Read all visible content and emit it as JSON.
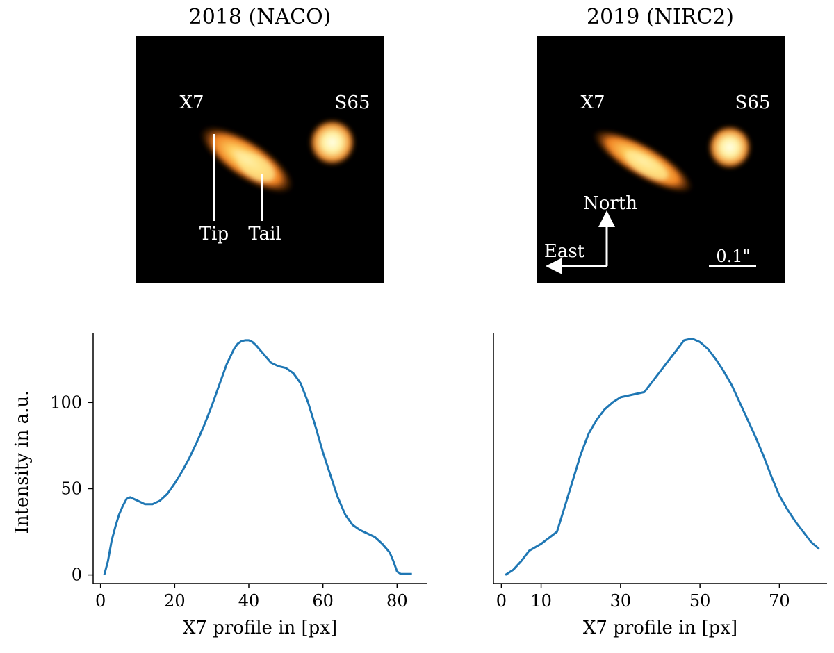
{
  "colors": {
    "line": "#1f77b4",
    "axis": "#000000",
    "image_bg": "#000000",
    "annotation": "#ffffff",
    "glow_hot": "#ffffe0",
    "glow_mid": "#ffb040",
    "glow_edge": "#e06010"
  },
  "panels": {
    "left": {
      "title": "2018 (NACO)",
      "labels": {
        "x7": "X7",
        "s65": "S65",
        "tip": "Tip",
        "tail": "Tail"
      }
    },
    "right": {
      "title": "2019 (NIRC2)",
      "labels": {
        "x7": "X7",
        "s65": "S65",
        "north": "North",
        "east": "East",
        "scale": "0.1\""
      }
    }
  },
  "chart_data": [
    {
      "type": "line",
      "title": "",
      "xlabel": "X7 profile in [px]",
      "ylabel": "Intensity in a.u.",
      "xlim": [
        -2,
        88
      ],
      "ylim": [
        -5,
        140
      ],
      "xticks": [
        0,
        20,
        40,
        60,
        80
      ],
      "xtick_labels": [
        "0",
        "20",
        "40",
        "60",
        "80"
      ],
      "yticks": [
        0,
        50,
        100
      ],
      "ytick_labels": [
        "0",
        "50",
        "100"
      ],
      "x": [
        1,
        2,
        3,
        4,
        5,
        6,
        7,
        8,
        10,
        12,
        14,
        16,
        18,
        20,
        22,
        24,
        26,
        28,
        30,
        32,
        34,
        36,
        37,
        38,
        39,
        40,
        41,
        42,
        44,
        46,
        48,
        50,
        52,
        54,
        56,
        58,
        60,
        62,
        64,
        66,
        68,
        70,
        72,
        74,
        76,
        78,
        79,
        80,
        81,
        82,
        84
      ],
      "values": [
        0,
        8,
        20,
        28,
        35,
        40,
        44,
        45,
        43,
        41,
        41,
        43,
        47,
        53,
        60,
        68,
        77,
        87,
        98,
        110,
        122,
        131,
        134,
        135.5,
        136,
        136,
        135,
        133,
        128,
        123,
        121,
        120,
        117,
        111,
        100,
        86,
        71,
        58,
        45,
        35,
        29,
        26,
        24,
        22,
        18,
        13,
        8,
        2,
        0.5,
        0.5,
        0.5
      ]
    },
    {
      "type": "line",
      "title": "",
      "xlabel": "X7 profile in [px]",
      "ylabel": "",
      "xlim": [
        -2,
        82
      ],
      "ylim": [
        -5,
        140
      ],
      "xticks": [
        0,
        10,
        30,
        50,
        70
      ],
      "xtick_labels": [
        "0",
        "10",
        "30",
        "50",
        "70"
      ],
      "yticks": [],
      "ytick_labels": [],
      "x": [
        1,
        3,
        5,
        7,
        10,
        14,
        16,
        18,
        20,
        22,
        24,
        26,
        28,
        30,
        32,
        34,
        36,
        38,
        40,
        42,
        44,
        46,
        48,
        50,
        52,
        54,
        56,
        58,
        60,
        62,
        64,
        66,
        68,
        70,
        72,
        74,
        76,
        78,
        80
      ],
      "values": [
        0,
        3,
        8,
        14,
        18,
        25,
        40,
        55,
        70,
        82,
        90,
        96,
        100,
        103,
        104,
        105,
        106,
        112,
        118,
        124,
        130,
        136,
        137,
        135,
        131,
        125,
        118,
        110,
        100,
        90,
        80,
        69,
        57,
        46,
        38,
        31,
        25,
        19,
        15
      ]
    }
  ]
}
